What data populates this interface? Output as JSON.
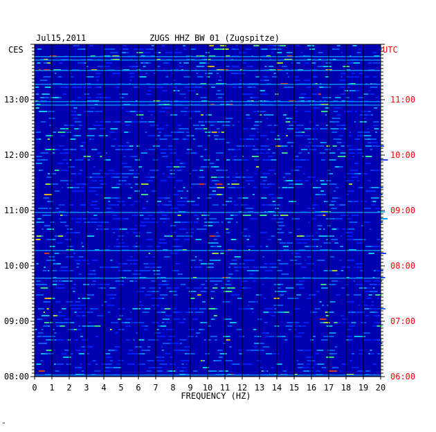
{
  "header": {
    "date": "Jul15,2011",
    "station": "ZUGS HHZ BW 01 (Zugspitze)"
  },
  "left_timezone": "CES",
  "right_timezone": "UTC",
  "footer_mark": "\"",
  "colors": {
    "background": "#0000b0",
    "utc_text": "#ff0000",
    "text": "#000000",
    "grid": "#000000"
  },
  "chart_data": {
    "type": "heatmap",
    "title": "ZUGS HHZ BW 01 (Zugspitze)",
    "xlabel": "FREQUENCY (HZ)",
    "x_ticks": [
      "0",
      "1",
      "2",
      "3",
      "4",
      "5",
      "6",
      "7",
      "8",
      "9",
      "10",
      "11",
      "12",
      "13",
      "14",
      "15",
      "16",
      "17",
      "18",
      "19",
      "20"
    ],
    "xlim": [
      0,
      20
    ],
    "left_ticks": [
      "13:00",
      "12:00",
      "11:00",
      "10:00",
      "09:00",
      "08:00"
    ],
    "right_ticks": [
      "11:00",
      "10:00",
      "09:00",
      "08:00",
      "07:00",
      "06:00"
    ],
    "left_time_range": [
      "08:00",
      "14:00"
    ],
    "strong_frequencies_hz": [
      9.8,
      10.8,
      14.2,
      16.8
    ],
    "grid": true
  }
}
